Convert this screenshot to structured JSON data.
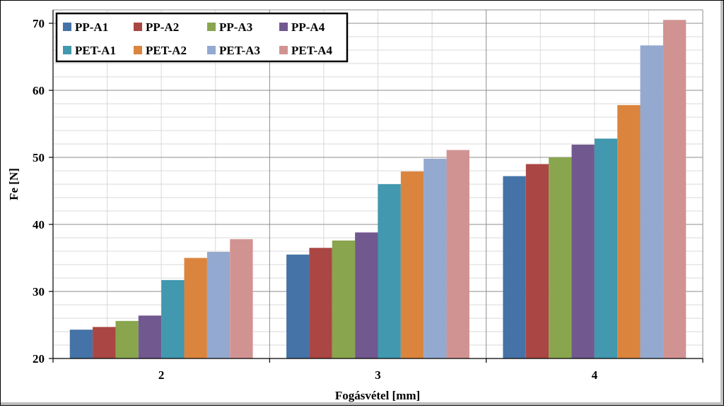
{
  "chart_data": {
    "type": "bar",
    "title": "",
    "xlabel": "Fogásvétel [mm]",
    "ylabel": "Fe [N]",
    "categories": [
      "2",
      "3",
      "4"
    ],
    "ylim": [
      20,
      72
    ],
    "yticks": [
      20,
      30,
      40,
      50,
      60,
      70
    ],
    "grid": true,
    "legend_position": "top-left",
    "series": [
      {
        "name": "PP-A1",
        "color": "#4573a7",
        "values": [
          24.3,
          35.5,
          47.2
        ]
      },
      {
        "name": "PP-A2",
        "color": "#aa4643",
        "values": [
          24.7,
          36.5,
          49.0
        ]
      },
      {
        "name": "PP-A3",
        "color": "#89a54e",
        "values": [
          25.6,
          37.6,
          50.0
        ]
      },
      {
        "name": "PP-A4",
        "color": "#71588f",
        "values": [
          26.4,
          38.8,
          51.9
        ]
      },
      {
        "name": "PET-A1",
        "color": "#4198af",
        "values": [
          31.7,
          46.0,
          52.8
        ]
      },
      {
        "name": "PET-A2",
        "color": "#db843d",
        "values": [
          35.0,
          47.9,
          57.8
        ]
      },
      {
        "name": "PET-A3",
        "color": "#93a9cf",
        "values": [
          35.9,
          49.8,
          66.7
        ]
      },
      {
        "name": "PET-A4",
        "color": "#d19392",
        "values": [
          37.8,
          51.1,
          70.5
        ]
      }
    ]
  }
}
